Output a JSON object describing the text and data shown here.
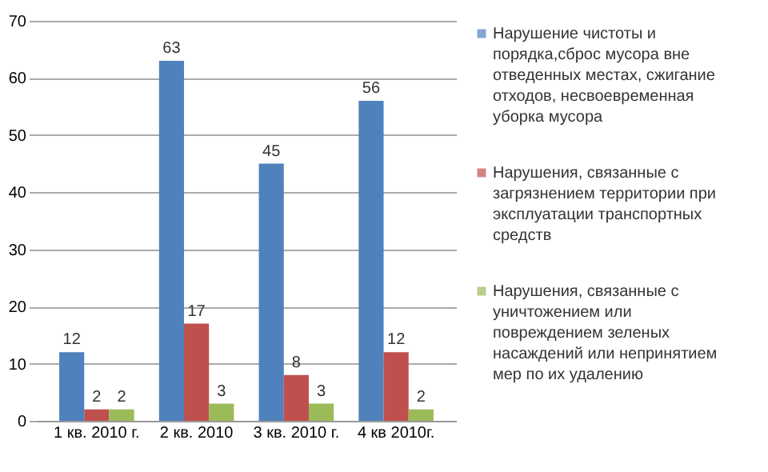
{
  "chart_data": {
    "type": "bar",
    "categories": [
      "1 кв. 2010 г.",
      "2 кв. 2010",
      "3 кв. 2010 г.",
      "4 кв 2010г."
    ],
    "series": [
      {
        "name": "Нарушение чистоты и порядка,сброс мусора вне отведенных местах, сжигание отходов, несвоевременная уборка мусора",
        "color": "#4f81bd",
        "values": [
          12,
          63,
          45,
          56
        ]
      },
      {
        "name": "Нарушения, связанные с загрязнением территории при эксплуатации транспортных средств",
        "color": "#c0504d",
        "values": [
          2,
          17,
          8,
          12
        ]
      },
      {
        "name": "Нарушения, связанные с уничтожением или повреждением зеленых насаждений или непринятием мер по их удалению",
        "color": "#9bbb59",
        "values": [
          2,
          3,
          3,
          2
        ]
      }
    ],
    "ylim": [
      0,
      70
    ],
    "yticks": [
      0,
      10,
      20,
      30,
      40,
      50,
      60,
      70
    ],
    "grid": "y",
    "data_labels": true,
    "legend": "right"
  }
}
